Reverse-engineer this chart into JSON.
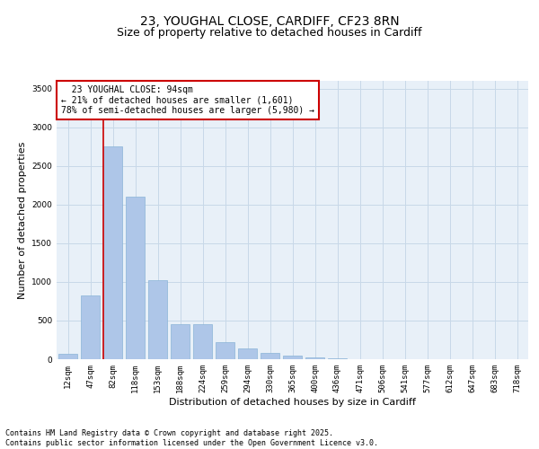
{
  "title_line1": "23, YOUGHAL CLOSE, CARDIFF, CF23 8RN",
  "title_line2": "Size of property relative to detached houses in Cardiff",
  "xlabel": "Distribution of detached houses by size in Cardiff",
  "ylabel": "Number of detached properties",
  "categories": [
    "12sqm",
    "47sqm",
    "82sqm",
    "118sqm",
    "153sqm",
    "188sqm",
    "224sqm",
    "259sqm",
    "294sqm",
    "330sqm",
    "365sqm",
    "400sqm",
    "436sqm",
    "471sqm",
    "506sqm",
    "541sqm",
    "577sqm",
    "612sqm",
    "647sqm",
    "683sqm",
    "718sqm"
  ],
  "values": [
    75,
    830,
    2750,
    2100,
    1020,
    455,
    450,
    220,
    140,
    80,
    45,
    25,
    10,
    5,
    3,
    2,
    1,
    1,
    0,
    0,
    0
  ],
  "bar_color": "#aec6e8",
  "bar_edge_color": "#8ab4d8",
  "vline_x_index": 2,
  "vline_color": "#cc0000",
  "annotation_text": "  23 YOUGHAL CLOSE: 94sqm\n← 21% of detached houses are smaller (1,601)\n78% of semi-detached houses are larger (5,980) →",
  "annotation_box_color": "#ffffff",
  "annotation_box_edge_color": "#cc0000",
  "annotation_fontsize": 7,
  "ylim": [
    0,
    3600
  ],
  "yticks": [
    0,
    500,
    1000,
    1500,
    2000,
    2500,
    3000,
    3500
  ],
  "grid_color": "#c8d8e8",
  "background_color": "#e8f0f8",
  "footer_text": "Contains HM Land Registry data © Crown copyright and database right 2025.\nContains public sector information licensed under the Open Government Licence v3.0.",
  "title_fontsize": 10,
  "subtitle_fontsize": 9,
  "axis_label_fontsize": 8,
  "tick_fontsize": 6.5,
  "footer_fontsize": 6
}
